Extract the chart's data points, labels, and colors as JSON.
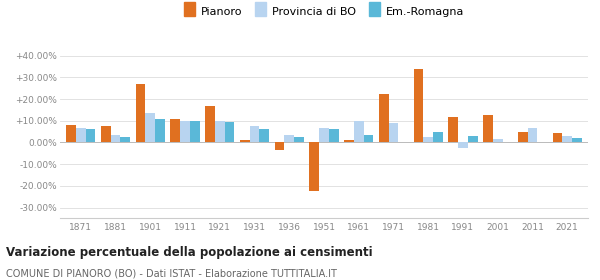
{
  "years": [
    1871,
    1881,
    1901,
    1911,
    1921,
    1931,
    1936,
    1951,
    1961,
    1971,
    1981,
    1991,
    2001,
    2011,
    2021
  ],
  "pianoro": [
    8.0,
    7.5,
    27.0,
    11.0,
    17.0,
    1.0,
    -3.5,
    -22.5,
    1.0,
    22.5,
    34.0,
    11.5,
    12.5,
    5.0,
    4.5
  ],
  "provincia_bo": [
    6.5,
    3.5,
    13.5,
    10.0,
    10.0,
    7.5,
    3.5,
    6.5,
    10.0,
    9.0,
    2.5,
    -2.5,
    1.5,
    6.5,
    3.0
  ],
  "emilia_romagna": [
    6.0,
    2.5,
    11.0,
    10.0,
    9.5,
    6.0,
    2.5,
    6.0,
    3.5,
    null,
    5.0,
    3.0,
    null,
    null,
    2.0
  ],
  "color_pianoro": "#e07020",
  "color_provincia": "#b8d4f0",
  "color_emilia": "#5ab8d8",
  "title": "Variazione percentuale della popolazione ai censimenti",
  "subtitle": "COMUNE DI PIANORO (BO) - Dati ISTAT - Elaborazione TUTTITALIA.IT",
  "legend_labels": [
    "Pianoro",
    "Provincia di BO",
    "Em.-Romagna"
  ],
  "ylim": [
    -35,
    45
  ],
  "yticks": [
    -30,
    -20,
    -10,
    0,
    10,
    20,
    30,
    40
  ],
  "ytick_labels": [
    "-30.00%",
    "-20.00%",
    "-10.00%",
    "0.00%",
    "+10.00%",
    "+20.00%",
    "+30.00%",
    "+40.00%"
  ]
}
